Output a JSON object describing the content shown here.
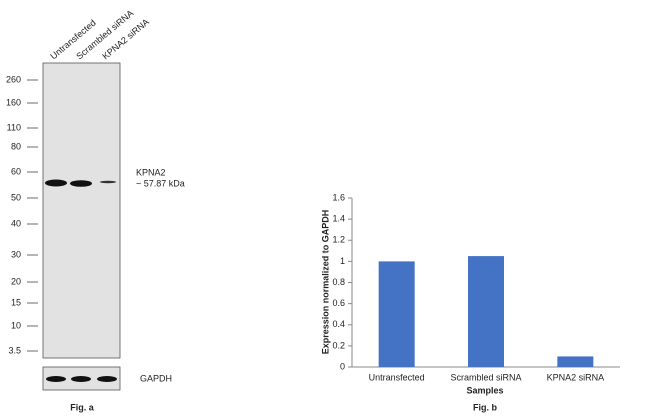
{
  "blot": {
    "lanes": [
      "Untransfected",
      "Scrambled siRNA",
      "KPNA2 siRNA"
    ],
    "markers": [
      "260",
      "160",
      "110",
      "80",
      "60",
      "50",
      "40",
      "30",
      "20",
      "15",
      "10",
      "3.5"
    ],
    "band_name": "KPNA2",
    "band_size": "~ 57.87 kDa",
    "loading_control": "GAPDH",
    "caption": "Fig. a"
  },
  "chart_data": {
    "type": "bar",
    "caption": "Fig. b",
    "categories": [
      "Untransfected",
      "Scrambled siRNA",
      "KPNA2 siRNA"
    ],
    "values": [
      1.0,
      1.05,
      0.1
    ],
    "color": "#4472c4",
    "ylabel": "Expression normalized to GAPDH",
    "xlabel": "Samples",
    "ylim": [
      0,
      1.6
    ],
    "yticks": [
      0,
      0.2,
      0.4,
      0.6,
      0.8,
      1,
      1.2,
      1.4,
      1.6
    ],
    "grid": false
  }
}
